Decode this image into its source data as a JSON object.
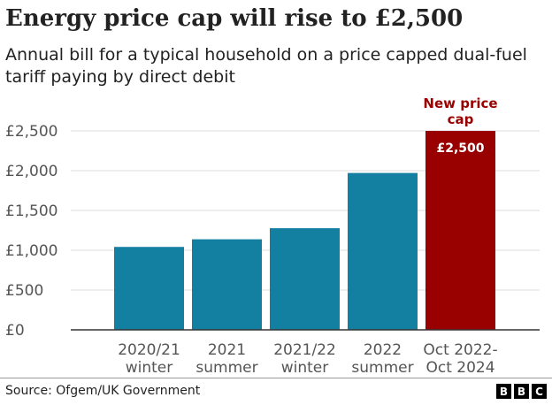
{
  "header": {
    "title": "Energy price cap will rise to £2,500",
    "subtitle": "Annual bill for a typical household on a price capped dual-fuel tariff paying by direct debit"
  },
  "footer": {
    "source": "Source: Ofgem/UK Government",
    "logo": [
      "B",
      "B",
      "C"
    ]
  },
  "colors": {
    "bar": "#1380a1",
    "highlight": "#990000",
    "grid": "#dddddd",
    "axis_text": "#555555"
  },
  "chart_data": {
    "type": "bar",
    "categories": [
      [
        "2020/21",
        "winter"
      ],
      [
        "2021",
        "summer"
      ],
      [
        "2021/22",
        "winter"
      ],
      [
        "2022",
        "summer"
      ],
      [
        "Oct 2022-",
        "Oct 2024"
      ]
    ],
    "values": [
      1042,
      1138,
      1277,
      1971,
      2500
    ],
    "highlight_index": 4,
    "data_labels": [
      "",
      "",
      "",
      "",
      "£2,500"
    ],
    "annotation": [
      "New price",
      "cap"
    ],
    "ylim": [
      0,
      2500
    ],
    "yticks": [
      0,
      500,
      1000,
      1500,
      2000,
      2500
    ],
    "ytick_labels": [
      "£0",
      "£500",
      "£1,000",
      "£1,500",
      "£2,000",
      "£2,500"
    ],
    "grid": true
  }
}
